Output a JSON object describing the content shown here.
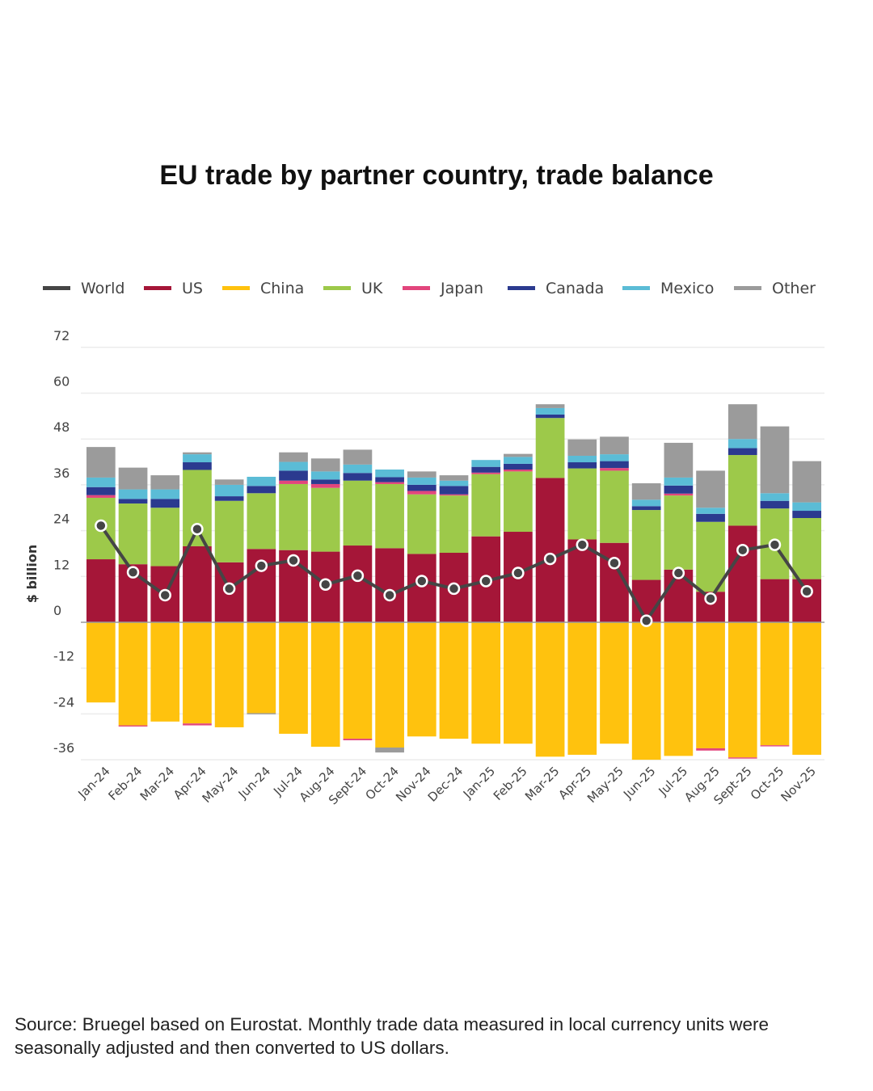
{
  "chart_data": {
    "type": "bar",
    "subtype": "stacked bar with line overlay",
    "title": "EU trade by partner country, trade balance",
    "ylabel": "$ billion",
    "xlabel": "",
    "ylim": [
      -36,
      72
    ],
    "yticks": [
      72,
      60,
      48,
      36,
      24,
      12,
      0,
      -12,
      -24,
      -36
    ],
    "grid": true,
    "legend_position": "top",
    "categories": [
      "Jan-24",
      "Feb-24",
      "Mar-24",
      "Apr-24",
      "May-24",
      "Jun-24",
      "Jul-24",
      "Aug-24",
      "Sept-24",
      "Oct-24",
      "Nov-24",
      "Dec-24",
      "Jan-25",
      "Feb-25",
      "Mar-25",
      "Apr-25",
      "May-25",
      "Jun-25",
      "Jul-25",
      "Aug-25",
      "Sept-25",
      "Oct-25",
      "Nov-25"
    ],
    "series": [
      {
        "name": "World",
        "kind": "line",
        "color": "#454545",
        "values": [
          25.3,
          13.1,
          7.1,
          24.4,
          8.8,
          14.8,
          16.2,
          9.9,
          12.2,
          7.1,
          10.8,
          8.8,
          10.8,
          12.9,
          16.6,
          20.3,
          15.5,
          0.4,
          12.9,
          6.2,
          18.9,
          20.3,
          8.1
        ]
      },
      {
        "name": "US",
        "kind": "bar",
        "color": "#A51638",
        "values": [
          16.5,
          15.2,
          14.7,
          19.9,
          15.7,
          19.2,
          18.9,
          18.5,
          20.1,
          19.4,
          17.9,
          18.2,
          22.5,
          23.7,
          37.8,
          21.7,
          20.8,
          11.1,
          13.8,
          8.0,
          25.3,
          11.3,
          11.3
        ]
      },
      {
        "name": "China",
        "kind": "bar",
        "color": "#FFC20E",
        "values": [
          -21.0,
          -27.0,
          -26.0,
          -26.5,
          -27.5,
          -23.8,
          -29.2,
          -32.6,
          -30.5,
          -32.8,
          -29.9,
          -30.5,
          -31.8,
          -31.8,
          -35.2,
          -34.7,
          -31.8,
          -36.0,
          -35.0,
          -33.0,
          -35.4,
          -32.2,
          -34.7
        ]
      },
      {
        "name": "UK",
        "kind": "bar",
        "color": "#9DC94A",
        "values": [
          16.1,
          15.9,
          15.3,
          20.0,
          16.1,
          14.6,
          17.3,
          16.7,
          17.0,
          16.8,
          15.6,
          15.0,
          16.3,
          15.8,
          15.7,
          18.6,
          18.9,
          18.3,
          19.4,
          18.3,
          18.5,
          18.5,
          16.0
        ]
      },
      {
        "name": "Japan",
        "kind": "bar",
        "color": "#E2457C",
        "values": [
          0.7,
          -0.3,
          0,
          -0.5,
          0,
          0,
          0.9,
          1.0,
          -0.4,
          0.5,
          0.9,
          0.3,
          0.4,
          0.5,
          0,
          0,
          0.7,
          0,
          0.5,
          -0.6,
          -0.3,
          -0.3,
          0
        ]
      },
      {
        "name": "Canada",
        "kind": "bar",
        "color": "#2B3A8F",
        "values": [
          2.1,
          1.2,
          2.3,
          2.0,
          1.2,
          1.9,
          2.6,
          1.2,
          2.0,
          1.3,
          1.6,
          2.2,
          1.5,
          1.5,
          0.9,
          1.6,
          1.8,
          1.0,
          2.1,
          2.1,
          1.8,
          2.0,
          1.9
        ]
      },
      {
        "name": "Mexico",
        "kind": "bar",
        "color": "#5BBCD6",
        "values": [
          2.5,
          2.5,
          2.5,
          2.1,
          3.0,
          2.4,
          2.3,
          2.1,
          2.2,
          2.0,
          1.9,
          1.4,
          1.8,
          1.8,
          1.7,
          1.7,
          1.8,
          1.7,
          2.1,
          1.6,
          2.4,
          2.0,
          2.2
        ]
      },
      {
        "name": "Other",
        "kind": "bar",
        "color": "#9B9B9B",
        "values": [
          8.0,
          5.7,
          3.7,
          0.5,
          1.4,
          -0.3,
          2.5,
          3.4,
          3.9,
          -1.3,
          1.6,
          1.4,
          0,
          0.8,
          1.0,
          4.3,
          4.6,
          4.3,
          9.1,
          9.7,
          9.1,
          17.5,
          10.8
        ]
      }
    ],
    "source": "Source: Bruegel based on Eurostat. Monthly trade data measured in local currency units were seasonally adjusted and then converted to US dollars."
  }
}
